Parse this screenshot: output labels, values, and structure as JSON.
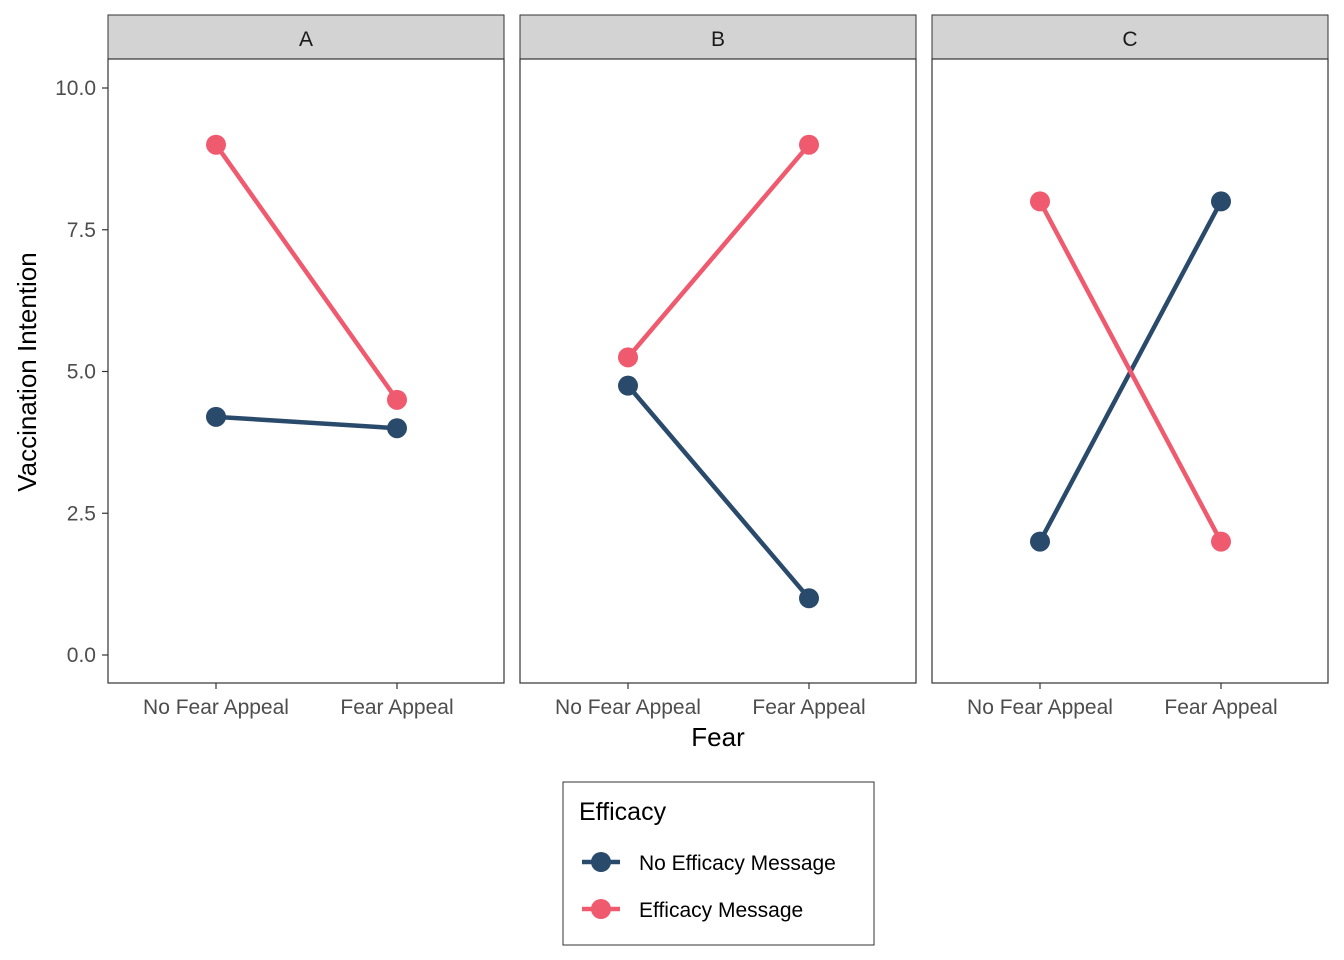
{
  "chart_data": {
    "type": "line",
    "ylabel": "Vaccination Intention",
    "xlabel": "Fear",
    "categories": [
      "No Fear Appeal",
      "Fear Appeal"
    ],
    "ylim": [
      -0.5,
      10.5
    ],
    "yticks": [
      0,
      2.5,
      5,
      7.5,
      10
    ],
    "ytick_labels": [
      "0.0",
      "2.5",
      "5.0",
      "7.5",
      "10.0"
    ],
    "grid": false,
    "legend": {
      "title": "Efficacy",
      "position": "bottom",
      "entries": [
        {
          "label": "No Efficacy Message",
          "color": "#2a4a6c"
        },
        {
          "label": "Efficacy Message",
          "color": "#ef5a6e"
        }
      ]
    },
    "panels": [
      {
        "title": "A",
        "series": [
          {
            "name": "No Efficacy Message",
            "color": "#2a4a6c",
            "values": [
              4.2,
              4.0
            ]
          },
          {
            "name": "Efficacy Message",
            "color": "#ef5a6e",
            "values": [
              9.0,
              4.5
            ]
          }
        ]
      },
      {
        "title": "B",
        "series": [
          {
            "name": "No Efficacy Message",
            "color": "#2a4a6c",
            "values": [
              4.75,
              1.0
            ]
          },
          {
            "name": "Efficacy Message",
            "color": "#ef5a6e",
            "values": [
              5.25,
              9.0
            ]
          }
        ]
      },
      {
        "title": "C",
        "series": [
          {
            "name": "No Efficacy Message",
            "color": "#2a4a6c",
            "values": [
              2.0,
              8.0
            ]
          },
          {
            "name": "Efficacy Message",
            "color": "#ef5a6e",
            "values": [
              8.0,
              2.0
            ]
          }
        ]
      }
    ]
  }
}
